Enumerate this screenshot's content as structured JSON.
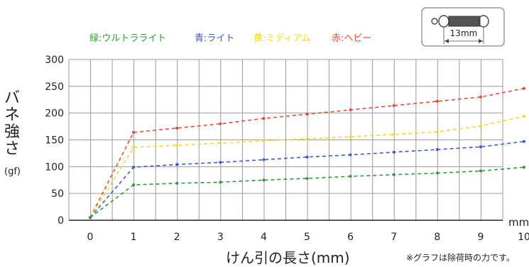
{
  "legend": [
    {
      "label": "緑:ウルトラライト",
      "color": "#2f9a3a"
    },
    {
      "label": "青:ライト",
      "color": "#3b59cc"
    },
    {
      "label": "黄:ミディアム",
      "color": "#f4d735"
    },
    {
      "label": "赤:ヘビー",
      "color": "#e8482e"
    }
  ],
  "inset": {
    "dimension_label": "13mm"
  },
  "ylabel_lines": [
    "バ",
    "ネ",
    "強",
    "さ"
  ],
  "yunit": "(gf)",
  "xlabel": "けん引の長さ(mm)",
  "xunit": "mm",
  "note": "※グラフは除荷時の力です。",
  "chart_data": {
    "type": "line",
    "x": [
      0,
      1,
      2,
      3,
      4,
      5,
      6,
      7,
      8,
      9,
      10
    ],
    "xlim": [
      0,
      10
    ],
    "ylim": [
      0,
      300
    ],
    "yticks": [
      0,
      50,
      100,
      150,
      200,
      250,
      300
    ],
    "xticks": [
      0,
      1,
      2,
      3,
      4,
      5,
      6,
      7,
      8,
      9,
      10
    ],
    "grid": true,
    "series": [
      {
        "name": "赤:ヘビー",
        "color": "#e8482e",
        "values": [
          5,
          164,
          172,
          180,
          190,
          198,
          206,
          214,
          222,
          230,
          246
        ]
      },
      {
        "name": "黄:ミディアム",
        "color": "#f4d735",
        "values": [
          5,
          136,
          140,
          144,
          148,
          152,
          156,
          160,
          165,
          176,
          194
        ]
      },
      {
        "name": "青:ライト",
        "color": "#3b59cc",
        "values": [
          5,
          99,
          104,
          108,
          113,
          118,
          122,
          127,
          132,
          137,
          147
        ]
      },
      {
        "name": "緑:ウルトラライト",
        "color": "#2f9a3a",
        "values": [
          5,
          66,
          69,
          71,
          75,
          78,
          82,
          85,
          88,
          92,
          99
        ]
      }
    ]
  }
}
